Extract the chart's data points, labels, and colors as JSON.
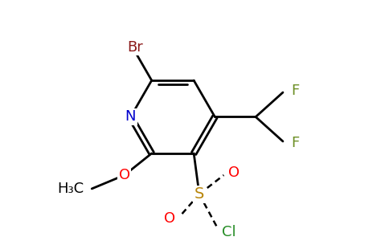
{
  "background_color": "#ffffff",
  "fig_width": 4.84,
  "fig_height": 3.0,
  "dpi": 100,
  "ring_lw": 2.0,
  "bond_lw": 2.0,
  "fs_main": 13,
  "colors": {
    "bond": "#000000",
    "Br": "#8b1a1a",
    "N": "#0000cd",
    "F": "#6b8e23",
    "O": "#ff0000",
    "S": "#b8860b",
    "Cl": "#228b22",
    "C": "#000000"
  }
}
